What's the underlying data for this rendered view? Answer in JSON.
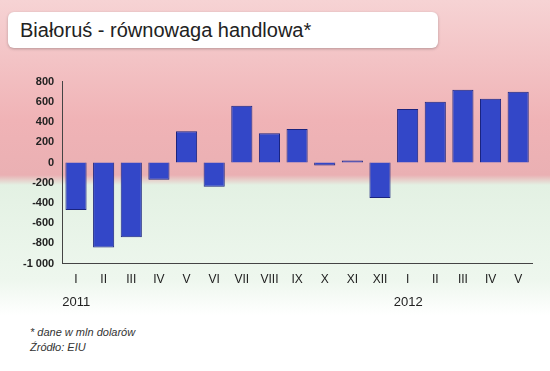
{
  "chart_data": {
    "type": "bar",
    "title": "Białoruś - równowaga handlowa*",
    "annotations": [
      "* dane w mln dolarów",
      "Źródło: EIU"
    ],
    "categories": [
      "I",
      "II",
      "III",
      "IV",
      "V",
      "VI",
      "VII",
      "VIII",
      "IX",
      "X",
      "XI",
      "XII",
      "I",
      "II",
      "III",
      "IV",
      "V"
    ],
    "groups": [
      {
        "label": "2011",
        "from": 0
      },
      {
        "label": "2012",
        "from": 12
      }
    ],
    "values": [
      -470,
      -840,
      -740,
      -170,
      310,
      -240,
      560,
      290,
      330,
      -30,
      20,
      -350,
      530,
      600,
      720,
      630,
      700
    ],
    "color": "#3347c8",
    "ylim": [
      -1000,
      800
    ],
    "yticks": [
      {
        "value": -1000,
        "label": "-1 000"
      },
      -800,
      -600,
      -400,
      -200,
      0,
      200,
      400,
      600,
      800
    ],
    "grid": false
  }
}
